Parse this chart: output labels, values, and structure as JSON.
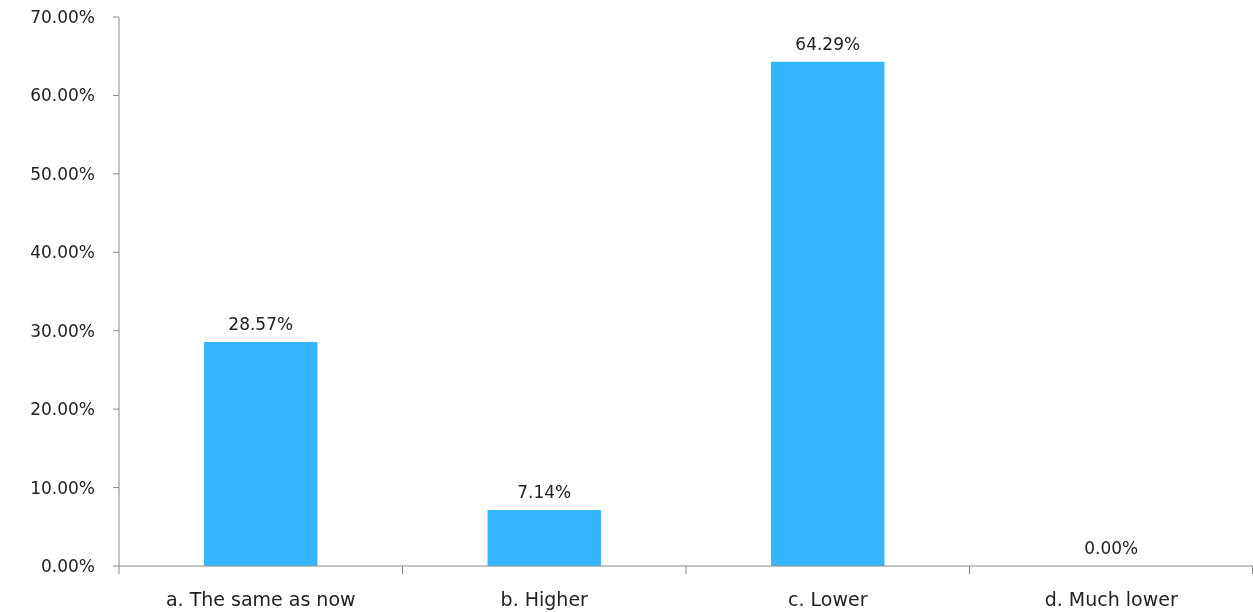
{
  "chart_data": {
    "type": "bar",
    "categories": [
      "a. The same as now",
      "b. Higher",
      "c. Lower",
      "d. Much lower"
    ],
    "values": [
      28.57,
      7.14,
      64.29,
      0
    ],
    "value_labels": [
      "28.57%",
      "7.14%",
      "64.29%",
      "0.00%"
    ],
    "color": "#33b5ff",
    "ylim": [
      0,
      70
    ],
    "yticks": [
      {
        "value": 0,
        "label": "0.00%"
      },
      {
        "value": 10,
        "label": "10.00%"
      },
      {
        "value": 20,
        "label": "20.00%"
      },
      {
        "value": 30,
        "label": "30.00%"
      },
      {
        "value": 40,
        "label": "40.00%"
      },
      {
        "value": 50,
        "label": "50.00%"
      },
      {
        "value": 60,
        "label": "60.00%"
      },
      {
        "value": 70,
        "label": "70.00%"
      }
    ],
    "grid": false
  }
}
